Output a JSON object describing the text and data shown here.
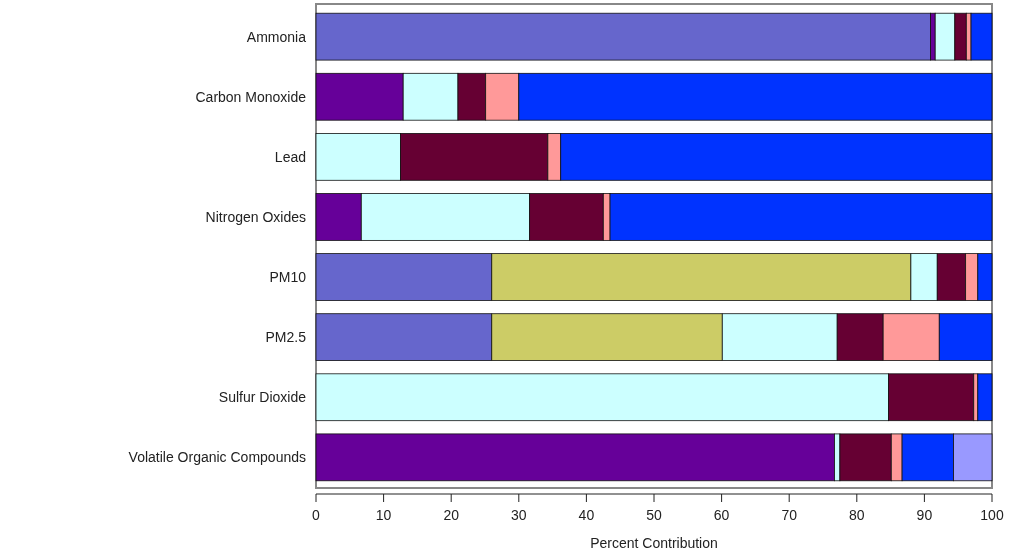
{
  "chart_data": {
    "type": "bar",
    "orientation": "horizontal",
    "stacked": true,
    "xlabel": "Percent Contribution",
    "categories": [
      "Ammonia",
      "Carbon Monoxide",
      "Lead",
      "Nitrogen Oxides",
      "PM10",
      "PM2.5",
      "Sulfur Dioxide",
      "Volatile Organic Compounds"
    ],
    "series": [
      {
        "color": "#6666cc",
        "values": [
          90.9,
          0,
          0,
          0,
          26.0,
          26.0,
          0,
          0
        ]
      },
      {
        "color": "#660099",
        "values": [
          0.7,
          12.9,
          0,
          6.7,
          0,
          0,
          0,
          76.7
        ]
      },
      {
        "color": "#cccc66",
        "values": [
          0,
          0,
          0,
          0,
          62.0,
          34.1,
          0,
          0
        ]
      },
      {
        "color": "#ccffff",
        "values": [
          2.9,
          8.1,
          12.5,
          24.9,
          3.9,
          17.0,
          84.7,
          0.8
        ]
      },
      {
        "color": "#660033",
        "values": [
          1.7,
          4.1,
          21.8,
          10.9,
          4.2,
          6.8,
          12.6,
          7.6
        ]
      },
      {
        "color": "#ff9999",
        "values": [
          0.7,
          4.9,
          1.9,
          1.0,
          1.8,
          8.3,
          0.6,
          1.6
        ]
      },
      {
        "color": "#0033ff",
        "values": [
          3.1,
          70.0,
          63.8,
          56.5,
          2.1,
          7.8,
          2.1,
          7.6
        ]
      },
      {
        "color": "#9999ff",
        "values": [
          0,
          0,
          0,
          0,
          0,
          0,
          0,
          5.7
        ]
      }
    ],
    "xlim": [
      0,
      100
    ],
    "xticks": [
      0,
      10,
      20,
      30,
      40,
      50,
      60,
      70,
      80,
      90,
      100
    ],
    "grid": false
  }
}
